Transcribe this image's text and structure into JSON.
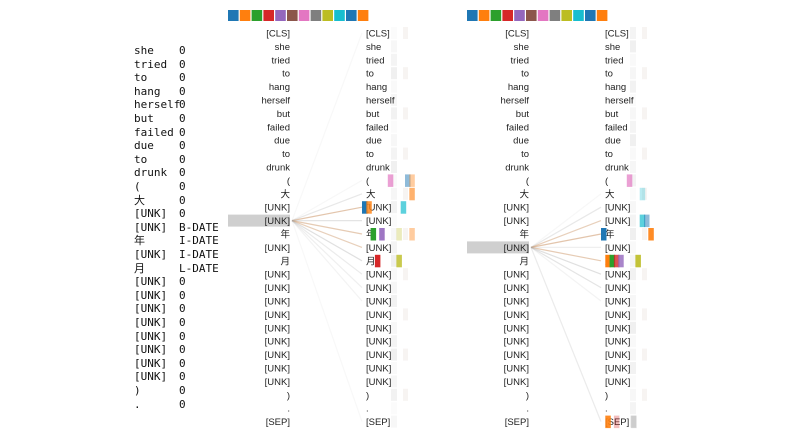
{
  "tokens": [
    {
      "token": "she",
      "label": "0"
    },
    {
      "token": "tried",
      "label": "0"
    },
    {
      "token": "to",
      "label": "0"
    },
    {
      "token": "hang",
      "label": "0"
    },
    {
      "token": "herself",
      "label": "0"
    },
    {
      "token": "but",
      "label": "0"
    },
    {
      "token": "failed",
      "label": "0"
    },
    {
      "token": "due",
      "label": "0"
    },
    {
      "token": "to",
      "label": "0"
    },
    {
      "token": "drunk",
      "label": "0"
    },
    {
      "token": "(",
      "label": "0"
    },
    {
      "token": "大",
      "label": "0"
    },
    {
      "token": "[UNK]",
      "label": "0"
    },
    {
      "token": "[UNK]",
      "label": "B-DATE"
    },
    {
      "token": "年",
      "label": "I-DATE"
    },
    {
      "token": "[UNK]",
      "label": "I-DATE"
    },
    {
      "token": "月",
      "label": "L-DATE"
    },
    {
      "token": "[UNK]",
      "label": "0"
    },
    {
      "token": "[UNK]",
      "label": "0"
    },
    {
      "token": "[UNK]",
      "label": "0"
    },
    {
      "token": "[UNK]",
      "label": "0"
    },
    {
      "token": "[UNK]",
      "label": "0"
    },
    {
      "token": "[UNK]",
      "label": "0"
    },
    {
      "token": "[UNK]",
      "label": "0"
    },
    {
      "token": "[UNK]",
      "label": "0"
    },
    {
      "token": ")",
      "label": "0"
    },
    {
      "token": ".",
      "label": "0"
    }
  ],
  "attention_tokens": [
    "[CLS]",
    "she",
    "tried",
    "to",
    "hang",
    "herself",
    "but",
    "failed",
    "due",
    "to",
    "drunk",
    "(",
    "大",
    "[UNK]",
    "[UNK]",
    "年",
    "[UNK]",
    "月",
    "[UNK]",
    "[UNK]",
    "[UNK]",
    "[UNK]",
    "[UNK]",
    "[UNK]",
    "[UNK]",
    "[UNK]",
    "[UNK]",
    ")",
    ".",
    "[SEP]"
  ],
  "head_colors": [
    "#1f77b4",
    "#ff7f0e",
    "#2ca02c",
    "#d62728",
    "#9467bd",
    "#8c564b",
    "#e377c2",
    "#7f7f7f",
    "#bcbd22",
    "#17becf",
    "#1f77b4",
    "#ff7f0e"
  ],
  "panels": [
    {
      "selected_index": 14,
      "targets": [
        13,
        15,
        16,
        17,
        14,
        12,
        18,
        19,
        20,
        11,
        0,
        29
      ],
      "cells": [
        {
          "row": 11,
          "head": 6,
          "alpha": 0.7
        },
        {
          "row": 11,
          "head": 10,
          "alpha": 0.5
        },
        {
          "row": 11,
          "head": 11,
          "alpha": 0.4
        },
        {
          "row": 12,
          "head": 11,
          "alpha": 0.6
        },
        {
          "row": 13,
          "head": 0,
          "alpha": 1.0
        },
        {
          "row": 13,
          "head": 1,
          "alpha": 0.8
        },
        {
          "row": 13,
          "head": 9,
          "alpha": 0.7
        },
        {
          "row": 15,
          "head": 2,
          "alpha": 1.0
        },
        {
          "row": 15,
          "head": 4,
          "alpha": 0.9
        },
        {
          "row": 15,
          "head": 8,
          "alpha": 0.3
        },
        {
          "row": 15,
          "head": 11,
          "alpha": 0.4
        },
        {
          "row": 17,
          "head": 3,
          "alpha": 1.0
        },
        {
          "row": 17,
          "head": 8,
          "alpha": 0.8
        }
      ]
    },
    {
      "selected_index": 16,
      "targets": [
        15,
        17,
        14,
        18,
        19,
        13,
        29,
        16,
        20,
        12
      ],
      "cells": [
        {
          "row": 11,
          "head": 6,
          "alpha": 0.7
        },
        {
          "row": 12,
          "head": 9,
          "alpha": 0.3
        },
        {
          "row": 14,
          "head": 9,
          "alpha": 0.7
        },
        {
          "row": 14,
          "head": 10,
          "alpha": 0.5
        },
        {
          "row": 15,
          "head": 0,
          "alpha": 1.0
        },
        {
          "row": 15,
          "head": 11,
          "alpha": 0.9
        },
        {
          "row": 17,
          "head": 1,
          "alpha": 1.0
        },
        {
          "row": 17,
          "head": 2,
          "alpha": 1.0
        },
        {
          "row": 17,
          "head": 3,
          "alpha": 0.8
        },
        {
          "row": 17,
          "head": 4,
          "alpha": 0.8
        },
        {
          "row": 17,
          "head": 8,
          "alpha": 0.9
        },
        {
          "row": 29,
          "head": 1,
          "alpha": 0.9
        },
        {
          "row": 29,
          "head": 3,
          "alpha": 0.3
        },
        {
          "row": 29,
          "head": 7,
          "alpha": 0.3
        }
      ]
    }
  ]
}
